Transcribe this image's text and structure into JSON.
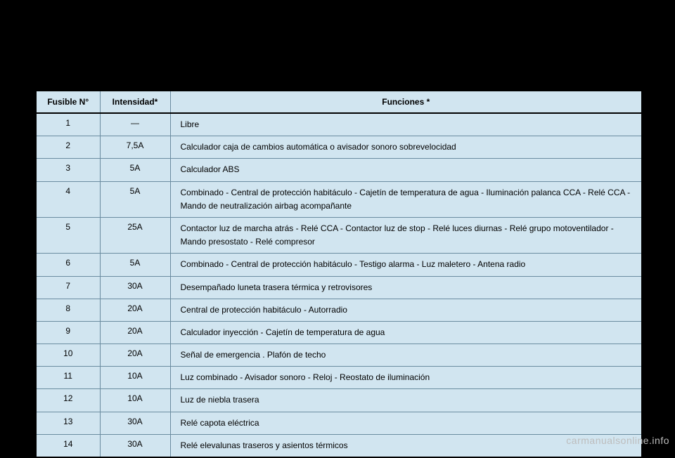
{
  "table": {
    "background_color": "#d1e5f0",
    "border_color": "#6a8ca0",
    "outer_border_color": "#000000",
    "font_size": 12,
    "columns": [
      {
        "key": "fuse",
        "label": "Fusible N°",
        "width": 90,
        "align": "center"
      },
      {
        "key": "intensity",
        "label": "Intensidad*",
        "width": 100,
        "align": "center"
      },
      {
        "key": "function",
        "label": "Funciones *",
        "align": "left"
      }
    ],
    "rows": [
      {
        "fuse": "1",
        "intensity": "—",
        "function": "Libre"
      },
      {
        "fuse": "2",
        "intensity": "7,5A",
        "function": "Calculador caja de  cambios automática o avisador sonoro sobrevelocidad"
      },
      {
        "fuse": "3",
        "intensity": "5A",
        "function": "Calculador ABS"
      },
      {
        "fuse": "4",
        "intensity": "5A",
        "function": "Combinado - Central de protección habitáculo - Cajetín de temperatura de agua - Iluminación palanca CCA - Relé CCA - Mando de neutralización airbag acompañante"
      },
      {
        "fuse": "5",
        "intensity": "25A",
        "function": "Contactor luz de marcha atrás - Relé CCA - Contactor luz de stop - Relé luces diurnas - Relé grupo motoventilador - Mando presostato - Relé compresor"
      },
      {
        "fuse": "6",
        "intensity": "5A",
        "function": "Combinado - Central de protección habitáculo - Testigo alarma - Luz maletero - Antena radio"
      },
      {
        "fuse": "7",
        "intensity": "30A",
        "function": "Desempañado luneta trasera térmica y retrovisores"
      },
      {
        "fuse": "8",
        "intensity": "20A",
        "function": "Central de protección habitáculo - Autorradio"
      },
      {
        "fuse": "9",
        "intensity": "20A",
        "function": "Calculador inyección - Cajetín de temperatura de agua"
      },
      {
        "fuse": "10",
        "intensity": "20A",
        "function": "Señal de emergencia . Plafón de techo"
      },
      {
        "fuse": "11",
        "intensity": "10A",
        "function": "Luz combinado - Avisador sonoro - Reloj - Reostato de iluminación"
      },
      {
        "fuse": "12",
        "intensity": "10A",
        "function": "Luz de niebla trasera"
      },
      {
        "fuse": "13",
        "intensity": "30A",
        "function": "Relé capota eléctrica"
      },
      {
        "fuse": "14",
        "intensity": "30A",
        "function": "Relé elevalunas traseros y asientos térmicos"
      }
    ]
  },
  "watermark": "carmanualsonline.info",
  "page_background": "#000000"
}
